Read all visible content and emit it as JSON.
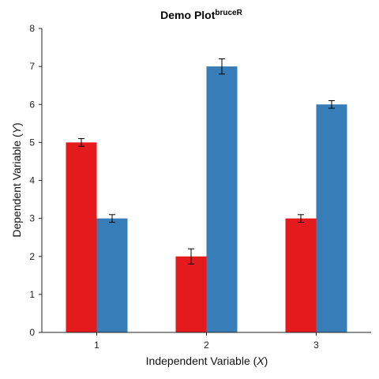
{
  "chart_data": {
    "type": "bar",
    "title": "Demo Plot",
    "title_superscript": "bruceR",
    "xlabel": {
      "prefix": "Independent Variable (",
      "italic": "X",
      "suffix": ")"
    },
    "ylabel": {
      "prefix": "Dependent Variable (",
      "italic": "Y",
      "suffix": ")"
    },
    "categories": [
      "1",
      "2",
      "3"
    ],
    "ylim": [
      0,
      8
    ],
    "yticks": [
      "0",
      "1",
      "2",
      "3",
      "4",
      "5",
      "6",
      "7",
      "8"
    ],
    "series": [
      {
        "color": "#e41a1c",
        "values": [
          5,
          2,
          3
        ],
        "errors": [
          0.1,
          0.2,
          0.1
        ]
      },
      {
        "color": "#377eb8",
        "values": [
          3,
          7,
          6
        ],
        "errors": [
          0.1,
          0.2,
          0.1
        ]
      }
    ],
    "grid": false,
    "legend": "none",
    "error_bars": true
  }
}
